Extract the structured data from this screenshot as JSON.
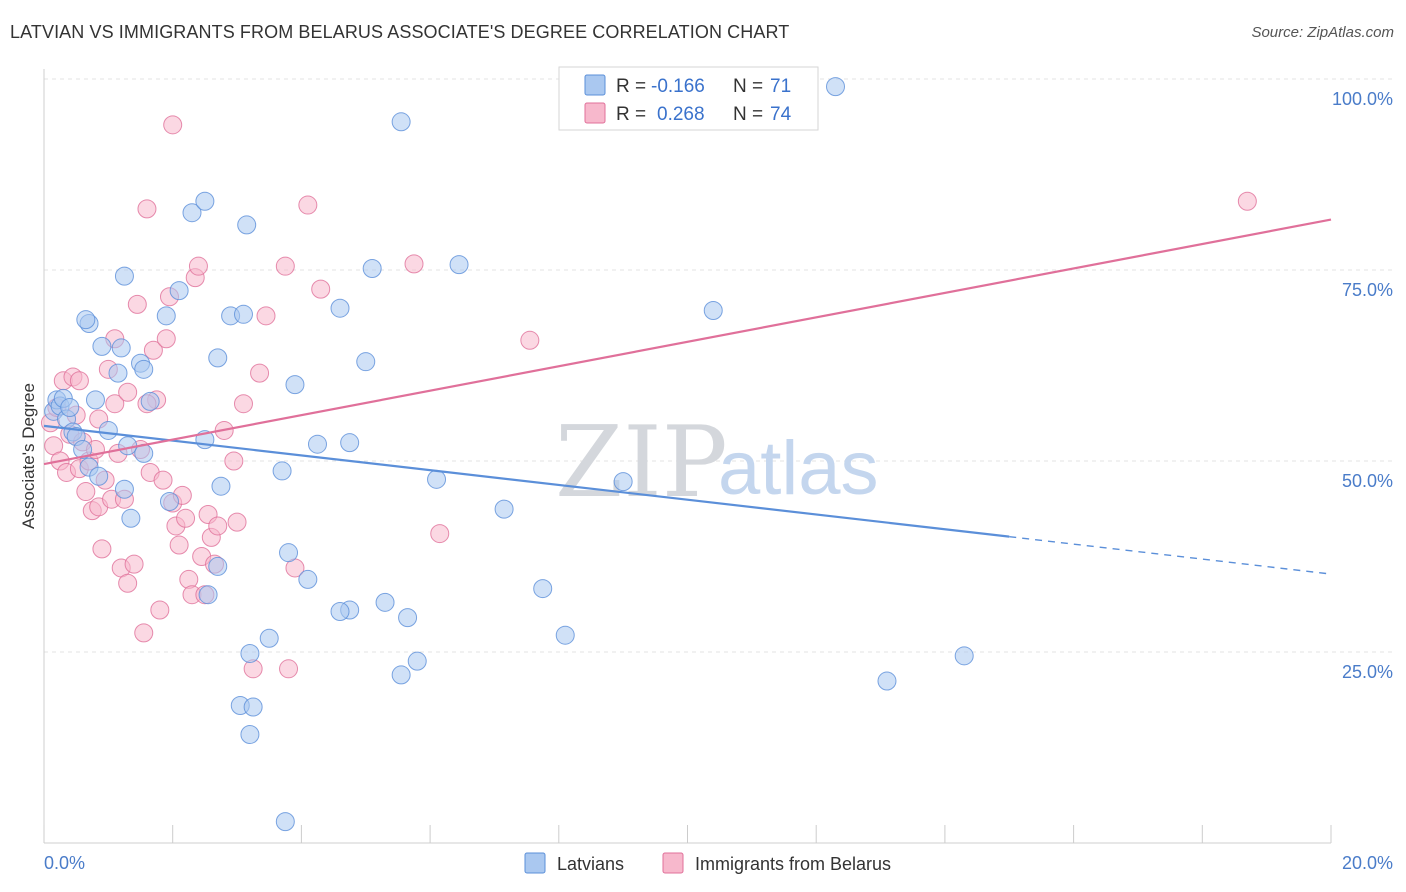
{
  "header": {
    "title": "LATVIAN VS IMMIGRANTS FROM BELARUS ASSOCIATE'S DEGREE CORRELATION CHART",
    "source": "Source: ZipAtlas.com"
  },
  "watermark": {
    "zip": "ZIP",
    "atlas": "atlas"
  },
  "stats": [
    {
      "r_label": "R =",
      "r_value": "-0.166",
      "n_label": "N =",
      "n_value": "71",
      "color": "#aac8f0"
    },
    {
      "r_label": "R =",
      "r_value": "0.268",
      "n_label": "N =",
      "n_value": "74",
      "color": "#f7b8cc"
    }
  ],
  "legend": [
    "Latvians",
    "Immigrants from Belarus"
  ],
  "chart_data": {
    "type": "scatter",
    "title": "LATVIAN VS IMMIGRANTS FROM BELARUS ASSOCIATE'S DEGREE CORRELATION CHART",
    "xlabel": "",
    "ylabel": "Associate's Degree",
    "xlim": [
      0,
      20
    ],
    "ylim": [
      0,
      100
    ],
    "x_tick_labels": [
      "0.0%",
      "20.0%"
    ],
    "y_tick_labels": [
      "25.0%",
      "50.0%",
      "75.0%",
      "100.0%"
    ],
    "y_ticks": [
      25,
      50,
      75,
      100
    ],
    "grid": true,
    "legend_position": "bottom",
    "series": [
      {
        "name": "Latvians",
        "color": "#5b8fd9",
        "fill": "#aac8f0",
        "trend": {
          "x": [
            0,
            15
          ],
          "y": [
            54.6,
            40.1
          ],
          "dashed_x": [
            15,
            20
          ],
          "dashed_y": [
            40.1,
            35.2
          ]
        },
        "points": [
          [
            0.15,
            56.5
          ],
          [
            0.2,
            58.0
          ],
          [
            0.25,
            57.2
          ],
          [
            0.3,
            58.2
          ],
          [
            0.35,
            55.5
          ],
          [
            0.4,
            57.0
          ],
          [
            0.45,
            53.8
          ],
          [
            0.5,
            53.2
          ],
          [
            0.6,
            51.5
          ],
          [
            0.7,
            49.2
          ],
          [
            0.8,
            58.0
          ],
          [
            0.85,
            48.0
          ],
          [
            1.0,
            54.0
          ],
          [
            0.9,
            65.0
          ],
          [
            1.2,
            64.8
          ],
          [
            1.15,
            61.5
          ],
          [
            0.7,
            68.0
          ],
          [
            1.3,
            52.0
          ],
          [
            1.25,
            46.3
          ],
          [
            1.35,
            42.5
          ],
          [
            1.5,
            62.8
          ],
          [
            1.55,
            62.0
          ],
          [
            1.65,
            57.8
          ],
          [
            1.95,
            44.7
          ],
          [
            0.65,
            68.5
          ],
          [
            1.25,
            74.2
          ],
          [
            1.9,
            69.0
          ],
          [
            2.1,
            72.3
          ],
          [
            2.3,
            82.5
          ],
          [
            2.5,
            84.0
          ],
          [
            2.7,
            63.5
          ],
          [
            2.9,
            69.0
          ],
          [
            3.1,
            69.2
          ],
          [
            3.15,
            80.9
          ],
          [
            2.5,
            52.8
          ],
          [
            1.55,
            51.0
          ],
          [
            2.75,
            46.7
          ],
          [
            3.7,
            48.7
          ],
          [
            2.7,
            36.2
          ],
          [
            2.55,
            32.5
          ],
          [
            3.8,
            38.0
          ],
          [
            3.9,
            60.0
          ],
          [
            4.1,
            34.5
          ],
          [
            4.25,
            52.2
          ],
          [
            4.6,
            70.0
          ],
          [
            4.75,
            52.4
          ],
          [
            5.0,
            63.0
          ],
          [
            5.1,
            75.2
          ],
          [
            5.55,
            94.4
          ],
          [
            4.75,
            30.5
          ],
          [
            5.3,
            31.5
          ],
          [
            5.55,
            22.0
          ],
          [
            5.65,
            29.5
          ],
          [
            5.8,
            23.8
          ],
          [
            6.1,
            47.6
          ],
          [
            6.45,
            75.7
          ],
          [
            7.15,
            43.7
          ],
          [
            7.75,
            33.3
          ],
          [
            8.1,
            27.2
          ],
          [
            9.0,
            47.3
          ],
          [
            10.4,
            69.7
          ],
          [
            12.3,
            99.0
          ],
          [
            13.1,
            21.2
          ],
          [
            14.3,
            24.5
          ],
          [
            3.2,
            24.8
          ],
          [
            3.5,
            26.8
          ],
          [
            3.05,
            18.0
          ],
          [
            3.2,
            14.2
          ],
          [
            3.75,
            2.8
          ],
          [
            3.25,
            17.8
          ],
          [
            4.6,
            30.3
          ]
        ]
      },
      {
        "name": "Immigrants from Belarus",
        "color": "#e0709a",
        "fill": "#f7b8cc",
        "trend": {
          "x": [
            0,
            20
          ],
          "y": [
            49.6,
            81.6
          ]
        },
        "points": [
          [
            0.1,
            55.0
          ],
          [
            0.15,
            52.0
          ],
          [
            0.2,
            57.0
          ],
          [
            0.25,
            50.0
          ],
          [
            0.3,
            60.5
          ],
          [
            0.35,
            48.5
          ],
          [
            0.4,
            53.5
          ],
          [
            0.45,
            61.0
          ],
          [
            0.5,
            56.0
          ],
          [
            0.55,
            49.0
          ],
          [
            0.6,
            52.5
          ],
          [
            0.65,
            46.0
          ],
          [
            0.7,
            50.0
          ],
          [
            0.75,
            43.5
          ],
          [
            0.8,
            51.5
          ],
          [
            0.85,
            44.0
          ],
          [
            0.9,
            38.5
          ],
          [
            0.95,
            47.5
          ],
          [
            1.0,
            62.0
          ],
          [
            1.05,
            45.0
          ],
          [
            1.1,
            57.5
          ],
          [
            1.15,
            51.0
          ],
          [
            1.2,
            36.0
          ],
          [
            1.25,
            45.0
          ],
          [
            1.3,
            34.0
          ],
          [
            1.4,
            36.5
          ],
          [
            1.45,
            70.5
          ],
          [
            1.5,
            51.5
          ],
          [
            1.55,
            27.5
          ],
          [
            1.6,
            83.0
          ],
          [
            1.65,
            48.5
          ],
          [
            1.7,
            64.5
          ],
          [
            1.75,
            58.0
          ],
          [
            1.8,
            30.5
          ],
          [
            1.85,
            47.5
          ],
          [
            1.9,
            66.0
          ],
          [
            1.95,
            71.5
          ],
          [
            2.0,
            44.5
          ],
          [
            2.05,
            41.5
          ],
          [
            2.1,
            39.0
          ],
          [
            2.15,
            45.5
          ],
          [
            2.2,
            42.5
          ],
          [
            2.25,
            34.5
          ],
          [
            2.3,
            32.5
          ],
          [
            2.35,
            74.0
          ],
          [
            2.4,
            75.5
          ],
          [
            2.45,
            37.5
          ],
          [
            2.5,
            32.5
          ],
          [
            2.55,
            43.0
          ],
          [
            2.6,
            40.0
          ],
          [
            2.65,
            36.5
          ],
          [
            2.7,
            41.5
          ],
          [
            2.8,
            54.0
          ],
          [
            2.95,
            50.0
          ],
          [
            3.0,
            42.0
          ],
          [
            3.1,
            57.5
          ],
          [
            3.25,
            22.8
          ],
          [
            3.35,
            61.5
          ],
          [
            3.45,
            69.0
          ],
          [
            3.75,
            75.5
          ],
          [
            3.8,
            22.8
          ],
          [
            3.9,
            36.0
          ],
          [
            4.1,
            83.5
          ],
          [
            4.3,
            72.5
          ],
          [
            5.75,
            75.8
          ],
          [
            6.15,
            40.5
          ],
          [
            7.55,
            65.8
          ],
          [
            18.7,
            84.0
          ],
          [
            2.0,
            94.0
          ],
          [
            0.55,
            60.5
          ],
          [
            1.3,
            59.0
          ],
          [
            0.85,
            55.5
          ],
          [
            1.1,
            66.0
          ],
          [
            1.6,
            57.5
          ]
        ]
      }
    ]
  }
}
